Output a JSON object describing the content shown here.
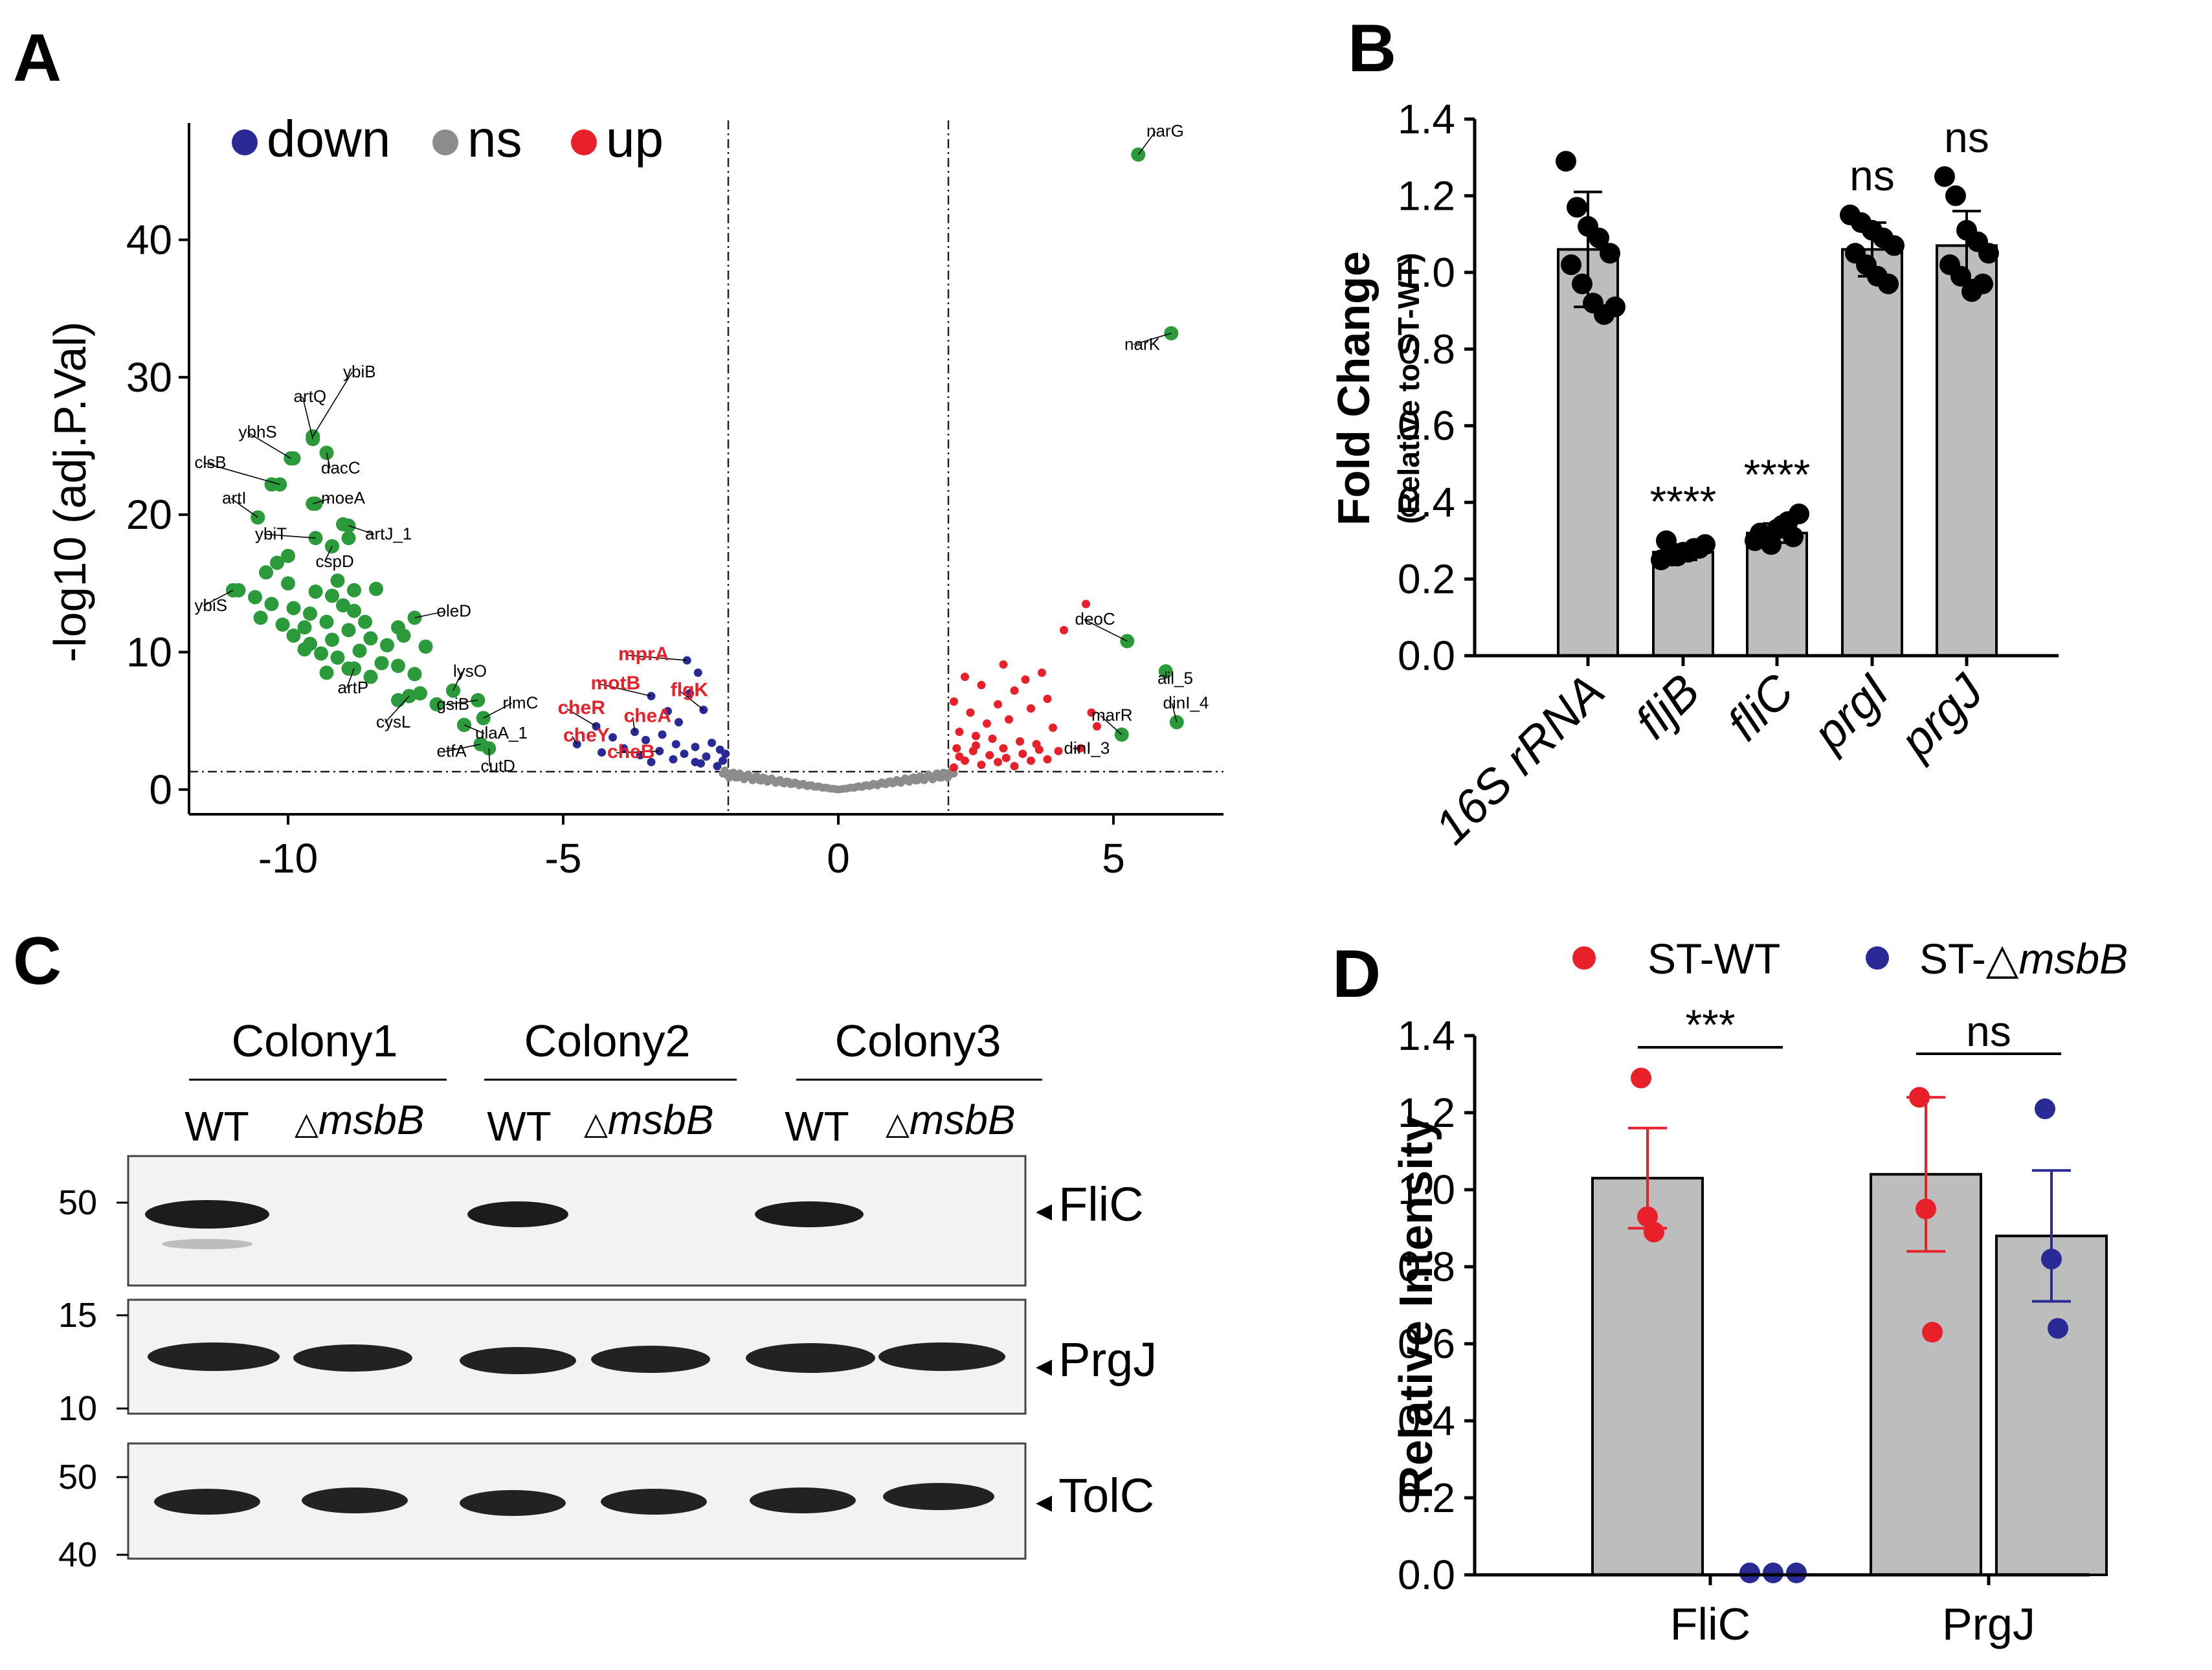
{
  "panel_labels": {
    "a": "A",
    "b": "B",
    "c": "C",
    "d": "D"
  },
  "colors": {
    "down": "#2a2a96",
    "ns": "#8c8c8c",
    "up": "#e8202a",
    "labeled": "#2a9a3a",
    "bar": "#bdbdbd"
  },
  "chart_data": [
    {
      "type": "scatter",
      "panel": "A",
      "title": "",
      "xlabel": "",
      "ylabel": "-log10 (adj.P.Val)",
      "xlim": [
        -11.8,
        7.0
      ],
      "ylim": [
        -1.8,
        48.5
      ],
      "xticks": [
        -10,
        -5,
        0,
        5
      ],
      "xtick_labels": [
        "-10",
        "-5",
        "0",
        "5"
      ],
      "yticks": [
        0,
        10,
        20,
        30,
        40
      ],
      "ytick_labels": [
        "0",
        "10",
        "20",
        "30",
        "40"
      ],
      "thresholds": {
        "logfc": [
          -2,
          2
        ],
        "neglog10p": 1.3
      },
      "legend": [
        {
          "key": "down",
          "label": "down"
        },
        {
          "key": "ns",
          "label": "ns"
        },
        {
          "key": "up",
          "label": "up"
        }
      ],
      "labeled_points": [
        {
          "gene": "narG",
          "x": 5.45,
          "y": 46.2,
          "group": "labeled",
          "lx": 5.6,
          "ly": 47.5,
          "style": "black"
        },
        {
          "gene": "narK",
          "x": 6.05,
          "y": 33.2,
          "group": "labeled",
          "lx": 5.2,
          "ly": 32.0,
          "style": "black"
        },
        {
          "gene": "deoC",
          "x": 5.25,
          "y": 10.8,
          "group": "labeled",
          "lx": 4.3,
          "ly": 12.0,
          "style": "black"
        },
        {
          "gene": "ail_5",
          "x": 5.95,
          "y": 8.6,
          "group": "labeled",
          "lx": 5.8,
          "ly": 7.7,
          "style": "black"
        },
        {
          "gene": "dinI_4",
          "x": 6.15,
          "y": 4.9,
          "group": "labeled",
          "lx": 5.9,
          "ly": 5.9,
          "style": "black"
        },
        {
          "gene": "marR",
          "x": 5.15,
          "y": 4.0,
          "group": "labeled",
          "lx": 4.6,
          "ly": 5.0,
          "style": "black"
        },
        {
          "gene": "dinI_3",
          "x": 4.4,
          "y": 3.0,
          "group": "up",
          "lx": 4.1,
          "ly": 2.6,
          "style": "black"
        },
        {
          "gene": "ybiB",
          "x": -9.55,
          "y": 25.7,
          "group": "labeled",
          "lx": -9.0,
          "ly": 30.0,
          "style": "black"
        },
        {
          "gene": "artQ",
          "x": -9.55,
          "y": 25.5,
          "group": "labeled",
          "lx": -9.9,
          "ly": 28.2,
          "style": "black"
        },
        {
          "gene": "ybhS",
          "x": -9.95,
          "y": 24.1,
          "group": "labeled",
          "lx": -10.9,
          "ly": 25.6,
          "style": "black"
        },
        {
          "gene": "dacC",
          "x": -9.3,
          "y": 24.5,
          "group": "labeled",
          "lx": -9.4,
          "ly": 23.0,
          "style": "black"
        },
        {
          "gene": "clsB",
          "x": -10.15,
          "y": 22.2,
          "group": "labeled",
          "lx": -11.7,
          "ly": 23.4,
          "style": "black"
        },
        {
          "gene": "moeA",
          "x": -9.55,
          "y": 20.8,
          "group": "labeled",
          "lx": -9.4,
          "ly": 20.8,
          "style": "black"
        },
        {
          "gene": "artI",
          "x": -10.55,
          "y": 19.8,
          "group": "labeled",
          "lx": -11.2,
          "ly": 20.8,
          "style": "black"
        },
        {
          "gene": "ybiT",
          "x": -9.5,
          "y": 18.3,
          "group": "labeled",
          "lx": -10.6,
          "ly": 18.2,
          "style": "black"
        },
        {
          "gene": "artJ_1",
          "x": -8.9,
          "y": 19.2,
          "group": "labeled",
          "lx": -8.6,
          "ly": 18.2,
          "style": "black"
        },
        {
          "gene": "cspD",
          "x": -9.2,
          "y": 17.7,
          "group": "labeled",
          "lx": -9.5,
          "ly": 16.2,
          "style": "black"
        },
        {
          "gene": "ybiS",
          "x": -11.0,
          "y": 14.5,
          "group": "labeled",
          "lx": -11.7,
          "ly": 13.0,
          "style": "black"
        },
        {
          "gene": "oleD",
          "x": -7.7,
          "y": 12.5,
          "group": "labeled",
          "lx": -7.3,
          "ly": 12.6,
          "style": "black"
        },
        {
          "gene": "lysO",
          "x": -7.0,
          "y": 7.2,
          "group": "labeled",
          "lx": -7.0,
          "ly": 8.2,
          "style": "black"
        },
        {
          "gene": "artP",
          "x": -8.8,
          "y": 8.8,
          "group": "labeled",
          "lx": -9.1,
          "ly": 7.0,
          "style": "black"
        },
        {
          "gene": "cysL",
          "x": -7.8,
          "y": 6.8,
          "group": "labeled",
          "lx": -8.4,
          "ly": 4.5,
          "style": "black"
        },
        {
          "gene": "gsiB",
          "x": -6.55,
          "y": 6.5,
          "group": "labeled",
          "lx": -7.3,
          "ly": 5.8,
          "style": "black"
        },
        {
          "gene": "rlmC",
          "x": -6.45,
          "y": 5.2,
          "group": "labeled",
          "lx": -6.1,
          "ly": 5.9,
          "style": "black"
        },
        {
          "gene": "ulaA_1",
          "x": -6.8,
          "y": 4.7,
          "group": "labeled",
          "lx": -6.6,
          "ly": 3.7,
          "style": "black"
        },
        {
          "gene": "etfA",
          "x": -6.5,
          "y": 3.3,
          "group": "labeled",
          "lx": -7.3,
          "ly": 2.4,
          "style": "black"
        },
        {
          "gene": "cutD",
          "x": -6.35,
          "y": 3.0,
          "group": "labeled",
          "lx": -6.5,
          "ly": 1.3,
          "style": "black"
        },
        {
          "gene": "mprA",
          "x": -2.75,
          "y": 9.4,
          "group": "down",
          "lx": -4.0,
          "ly": 9.4,
          "style": "red"
        },
        {
          "gene": "motB",
          "x": -3.4,
          "y": 6.8,
          "group": "down",
          "lx": -4.5,
          "ly": 7.3,
          "style": "red"
        },
        {
          "gene": "flgK",
          "x": -2.45,
          "y": 5.8,
          "group": "down",
          "lx": -3.05,
          "ly": 6.8,
          "style": "red"
        },
        {
          "gene": "cheR",
          "x": -4.4,
          "y": 4.6,
          "group": "down",
          "lx": -5.1,
          "ly": 5.5,
          "style": "red"
        },
        {
          "gene": "cheA",
          "x": -3.7,
          "y": 4.2,
          "group": "down",
          "lx": -3.9,
          "ly": 4.9,
          "style": "red"
        },
        {
          "gene": "cheY",
          "x": -4.75,
          "y": 3.3,
          "group": "down",
          "lx": -5.0,
          "ly": 3.5,
          "style": "red"
        },
        {
          "gene": "cheB",
          "x": -3.25,
          "y": 2.8,
          "group": "down",
          "lx": -4.2,
          "ly": 2.3,
          "style": "red"
        }
      ],
      "green_points": [
        [
          -10.2,
          16.5
        ],
        [
          -10.0,
          15.0
        ],
        [
          -10.6,
          14.0
        ],
        [
          -10.3,
          13.5
        ],
        [
          -9.9,
          13.2
        ],
        [
          -10.5,
          12.5
        ],
        [
          -10.1,
          12.0
        ],
        [
          -9.7,
          11.8
        ],
        [
          -9.5,
          14.4
        ],
        [
          -9.2,
          14.1
        ],
        [
          -9.0,
          13.4
        ],
        [
          -8.8,
          13.0
        ],
        [
          -9.6,
          12.8
        ],
        [
          -9.3,
          12.2
        ],
        [
          -9.9,
          11.2
        ],
        [
          -9.6,
          10.6
        ],
        [
          -9.2,
          10.9
        ],
        [
          -8.9,
          11.6
        ],
        [
          -8.6,
          12.2
        ],
        [
          -8.5,
          11.0
        ],
        [
          -8.2,
          10.5
        ],
        [
          -8.0,
          11.8
        ],
        [
          -8.7,
          10.1
        ],
        [
          -9.1,
          9.6
        ],
        [
          -9.4,
          9.9
        ],
        [
          -9.7,
          10.2
        ],
        [
          -8.3,
          9.2
        ],
        [
          -8.0,
          9.0
        ],
        [
          -7.7,
          8.4
        ],
        [
          -8.5,
          8.2
        ],
        [
          -8.9,
          8.8
        ],
        [
          -9.3,
          8.5
        ],
        [
          -7.5,
          10.4
        ],
        [
          -7.9,
          11.2
        ],
        [
          -8.4,
          14.6
        ],
        [
          -8.8,
          14.5
        ],
        [
          -9.1,
          15.2
        ],
        [
          -10.0,
          17.0
        ],
        [
          -10.4,
          15.8
        ],
        [
          -10.9,
          14.5
        ],
        [
          -7.3,
          6.2
        ],
        [
          -8.0,
          6.5
        ],
        [
          -7.6,
          7.0
        ],
        [
          -9.0,
          19.3
        ],
        [
          -9.5,
          20.8
        ],
        [
          -10.3,
          22.2
        ],
        [
          -9.9,
          24.1
        ],
        [
          -9.3,
          24.5
        ],
        [
          -9.55,
          25.6
        ],
        [
          -11.0,
          14.5
        ],
        [
          -10.55,
          19.8
        ],
        [
          -8.9,
          18.3
        ],
        [
          -9.2,
          17.7
        ],
        [
          -6.55,
          6.5
        ],
        [
          -6.45,
          5.2
        ],
        [
          -6.8,
          4.7
        ],
        [
          -6.5,
          3.3
        ],
        [
          -7.0,
          7.2
        ],
        [
          -7.8,
          6.8
        ],
        [
          -8.8,
          8.8
        ]
      ],
      "red_points": [
        [
          4.5,
          13.5
        ],
        [
          4.1,
          11.6
        ],
        [
          3.0,
          9.1
        ],
        [
          3.7,
          8.5
        ],
        [
          3.4,
          8.0
        ],
        [
          2.3,
          8.2
        ],
        [
          2.6,
          7.6
        ],
        [
          3.2,
          7.2
        ],
        [
          3.8,
          6.6
        ],
        [
          2.1,
          6.4
        ],
        [
          2.9,
          6.2
        ],
        [
          3.5,
          5.9
        ],
        [
          4.6,
          5.6
        ],
        [
          2.4,
          5.6
        ],
        [
          3.1,
          5.1
        ],
        [
          2.7,
          4.8
        ],
        [
          4.7,
          4.6
        ],
        [
          3.9,
          4.5
        ],
        [
          2.2,
          4.2
        ],
        [
          2.5,
          3.9
        ],
        [
          2.8,
          3.7
        ],
        [
          3.3,
          3.5
        ],
        [
          3.6,
          3.3
        ],
        [
          2.15,
          3.0
        ],
        [
          2.45,
          2.8
        ],
        [
          2.75,
          2.5
        ],
        [
          3.05,
          2.3
        ],
        [
          3.35,
          2.6
        ],
        [
          3.65,
          2.9
        ],
        [
          2.3,
          2.1
        ],
        [
          2.6,
          1.8
        ],
        [
          2.9,
          2.0
        ],
        [
          3.2,
          1.7
        ],
        [
          3.5,
          2.1
        ],
        [
          2.1,
          1.6
        ],
        [
          4.0,
          2.8
        ],
        [
          4.4,
          3.0
        ],
        [
          2.2,
          2.4
        ],
        [
          3.8,
          2.2
        ],
        [
          2.5,
          3.2
        ],
        [
          3.0,
          3.0
        ]
      ],
      "down_points": [
        [
          -2.75,
          9.4
        ],
        [
          -2.55,
          8.5
        ],
        [
          -2.7,
          7.0
        ],
        [
          -2.45,
          5.8
        ],
        [
          -3.4,
          6.8
        ],
        [
          -3.1,
          5.7
        ],
        [
          -2.9,
          4.9
        ],
        [
          -3.7,
          4.2
        ],
        [
          -3.2,
          4.0
        ],
        [
          -3.5,
          3.6
        ],
        [
          -4.4,
          4.6
        ],
        [
          -4.1,
          3.8
        ],
        [
          -3.9,
          3.0
        ],
        [
          -4.75,
          3.3
        ],
        [
          -3.25,
          2.8
        ],
        [
          -2.95,
          3.3
        ],
        [
          -2.6,
          3.1
        ],
        [
          -2.3,
          3.4
        ],
        [
          -2.15,
          2.9
        ],
        [
          -2.4,
          2.4
        ],
        [
          -2.6,
          2.0
        ],
        [
          -2.8,
          2.6
        ],
        [
          -2.1,
          2.1
        ],
        [
          -2.2,
          1.7
        ],
        [
          -3.0,
          2.2
        ],
        [
          -3.6,
          2.5
        ],
        [
          -4.3,
          2.7
        ],
        [
          -2.5,
          1.9
        ],
        [
          -2.05,
          2.6
        ],
        [
          -3.4,
          2.0
        ]
      ]
    },
    {
      "type": "bar",
      "panel": "B",
      "ylabel": "Fold Change",
      "ylabel_sub": "(Relative to ST-WT)",
      "ylim": [
        0,
        1.4
      ],
      "yticks": [
        "0.0",
        "0.2",
        "0.4",
        "0.6",
        "0.8",
        "1.0",
        "1.2",
        "1.4"
      ],
      "categories": [
        "16S rRNA",
        "fljB",
        "fliC",
        "prgI",
        "prgJ"
      ],
      "values": [
        1.06,
        0.27,
        0.32,
        1.06,
        1.07
      ],
      "errors": [
        0.15,
        0.02,
        0.025,
        0.07,
        0.09
      ],
      "significance": [
        "",
        "****",
        "****",
        "ns",
        "ns"
      ],
      "replicates": [
        [
          1.29,
          1.17,
          1.12,
          1.09,
          1.05,
          1.02,
          0.97,
          0.92,
          0.89,
          0.91
        ],
        [
          0.25,
          0.26,
          0.27,
          0.28,
          0.29,
          0.3,
          0.26,
          0.27,
          0.28
        ],
        [
          0.3,
          0.31,
          0.33,
          0.35,
          0.37,
          0.32,
          0.29,
          0.34,
          0.31
        ],
        [
          1.15,
          1.13,
          1.11,
          1.09,
          1.07,
          1.05,
          1.02,
          0.99,
          0.97
        ],
        [
          1.25,
          1.2,
          1.11,
          1.08,
          1.05,
          1.02,
          0.99,
          0.95,
          0.97
        ]
      ]
    },
    {
      "type": "bar",
      "panel": "D",
      "ylabel": "Relative Intensity",
      "ylim": [
        0,
        1.4
      ],
      "yticks": [
        "0.0",
        "0.2",
        "0.4",
        "0.6",
        "0.8",
        "1.0",
        "1.2",
        "1.4"
      ],
      "categories": [
        "FliC",
        "PrgJ"
      ],
      "legend": [
        {
          "key": "wt",
          "label": "ST-WT"
        },
        {
          "key": "ko_prefix",
          "label": "ST-△"
        },
        {
          "key": "ko_gene",
          "label": "msbB"
        }
      ],
      "series": [
        {
          "name": "ST-WT",
          "values": [
            1.03,
            1.04
          ],
          "errors": [
            0.13,
            0.2
          ],
          "points": [
            [
              1.29,
              0.93,
              0.89
            ],
            [
              1.24,
              0.95,
              0.63
            ]
          ]
        },
        {
          "name": "ST-△msbB",
          "values": [
            0.0,
            0.88
          ],
          "errors": [
            0.0,
            0.17
          ],
          "points": [
            [
              0.005,
              0.005,
              0.005
            ],
            [
              1.21,
              0.82,
              0.64
            ]
          ]
        }
      ],
      "significance": [
        "***",
        "ns"
      ]
    }
  ],
  "blot": {
    "colonies": [
      "Colony1",
      "Colony2",
      "Colony3"
    ],
    "lane_wt": "WT",
    "lane_ko_prefix": "△",
    "lane_ko_gene": "msbB",
    "bands": [
      "FliC",
      "PrgJ",
      "TolC"
    ],
    "mw": {
      "flic": [
        "50"
      ],
      "prgj": [
        "15",
        "10"
      ],
      "tolc": [
        "50",
        "40"
      ]
    },
    "arrow": "◂"
  }
}
